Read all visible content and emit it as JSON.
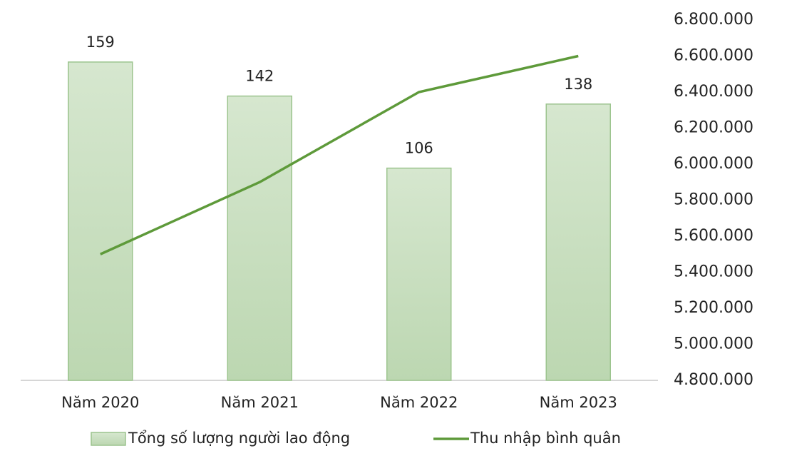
{
  "chart_data": {
    "type": "bar_line",
    "categories": [
      "Năm 2020",
      "Năm 2021",
      "Năm 2022",
      "Năm 2023"
    ],
    "series": [
      {
        "name": "Tổng số lượng người lao động",
        "type": "bar",
        "color": "#c9dfbf",
        "values": [
          159,
          142,
          106,
          138
        ]
      },
      {
        "name": "Thu nhập bình quân",
        "type": "line",
        "axis": "y2",
        "color": "#5e9a3a",
        "values": [
          5500000,
          5900000,
          6400000,
          6600000
        ]
      }
    ],
    "ylim": [
      0,
      180
    ],
    "y2lim": [
      4800000,
      6800000
    ],
    "y2ticks": [
      {
        "value": 4800000,
        "label": "4.800.000"
      },
      {
        "value": 5000000,
        "label": "5.000.000"
      },
      {
        "value": 5200000,
        "label": "5.200.000"
      },
      {
        "value": 5400000,
        "label": "5.400.000"
      },
      {
        "value": 5600000,
        "label": "5.600.000"
      },
      {
        "value": 5800000,
        "label": "5.800.000"
      },
      {
        "value": 6000000,
        "label": "6.000.000"
      },
      {
        "value": 6200000,
        "label": "6.200.000"
      },
      {
        "value": 6400000,
        "label": "6.400.000"
      },
      {
        "value": 6600000,
        "label": "6.600.000"
      },
      {
        "value": 6800000,
        "label": "6.800.000"
      }
    ],
    "legend": "bottom"
  }
}
